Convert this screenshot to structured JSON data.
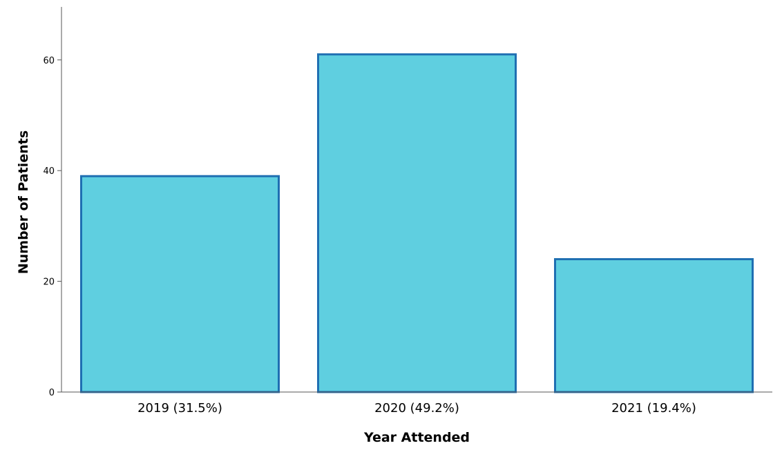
{
  "chart_data": {
    "type": "bar",
    "title": "",
    "xlabel": "Year Attended",
    "ylabel": "Number of Patients",
    "categories": [
      "2019 (31.5%)",
      "2020 (49.2%)",
      "2021 (19.4%)"
    ],
    "values": [
      39,
      61,
      24
    ],
    "ylim": [
      0,
      70
    ],
    "yticks": [
      0,
      20,
      40,
      60
    ],
    "grid": false,
    "legend": "none",
    "colors": {
      "bar_fill": "#5fcfe0",
      "bar_stroke": "#1f6fb2",
      "axis": "#555555"
    }
  }
}
